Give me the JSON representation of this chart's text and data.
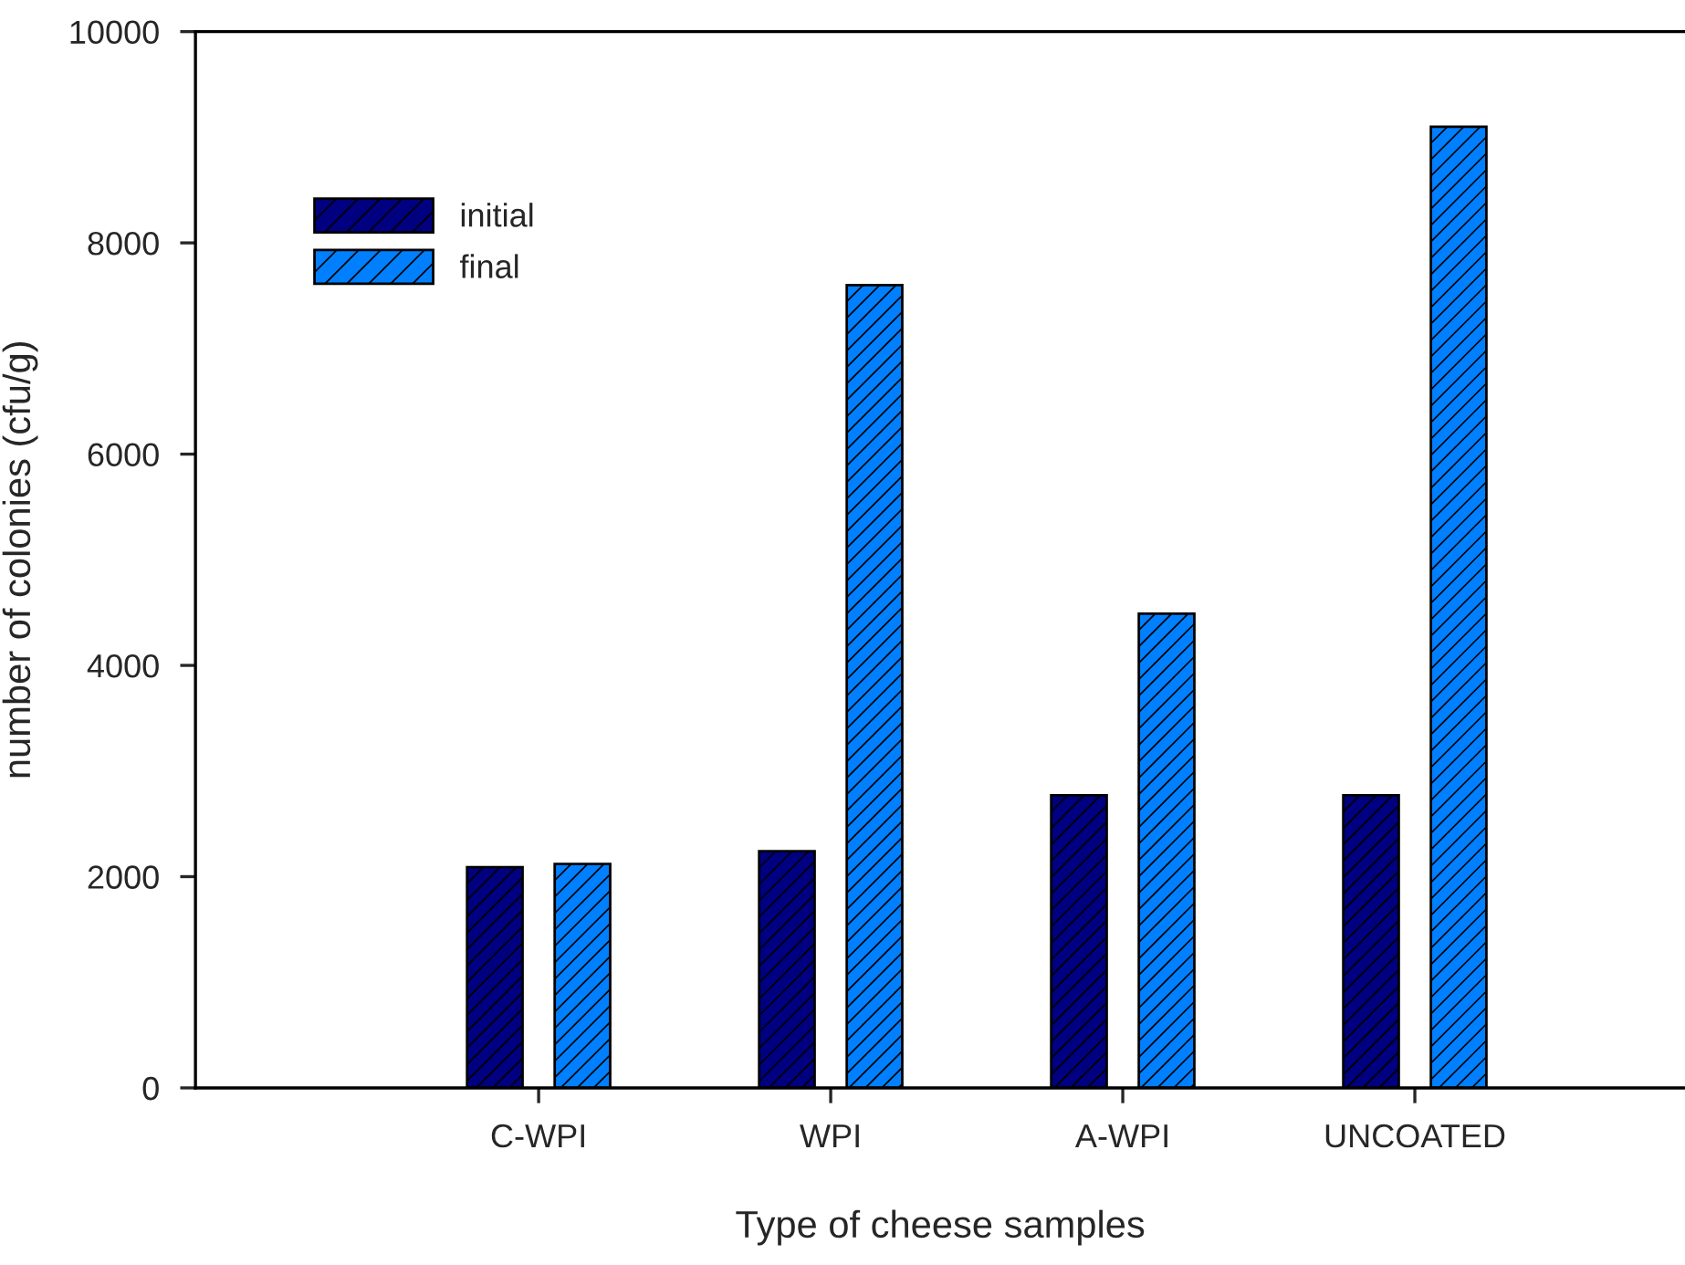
{
  "chart_data": {
    "type": "bar",
    "xlabel": "Type of cheese samples",
    "ylabel": "number of colonies (cfu/g)",
    "categories": [
      "C-WPI",
      "WPI",
      "A-WPI",
      "UNCOATED"
    ],
    "series": [
      {
        "name": "initial",
        "color": "#000080",
        "values": [
          2090,
          2240,
          2770,
          2770
        ]
      },
      {
        "name": "final",
        "color": "#0080ff",
        "values": [
          2120,
          7600,
          4490,
          9100
        ]
      }
    ],
    "ylim": [
      0,
      10000
    ],
    "yticks": [
      0,
      2000,
      4000,
      6000,
      8000,
      10000
    ],
    "grid": false,
    "legend": "top left"
  }
}
